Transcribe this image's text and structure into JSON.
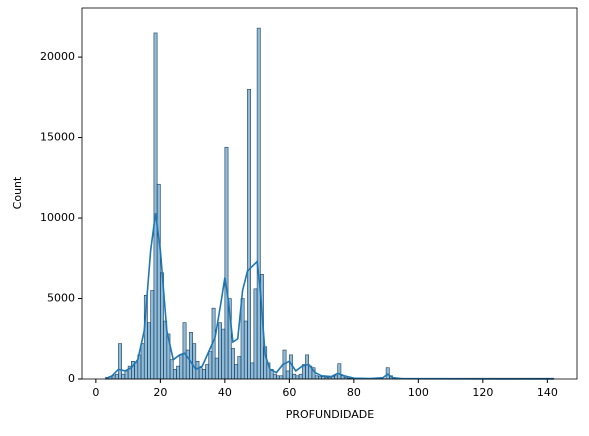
{
  "chart_data": {
    "type": "histogram",
    "xlabel": "PROFUNDIDADE",
    "ylabel": "Count",
    "bins": [
      3,
      4,
      5,
      6,
      7,
      8,
      9,
      10,
      11,
      12,
      13,
      14,
      15,
      16,
      17,
      18,
      19,
      20,
      21,
      22,
      23,
      24,
      25,
      26,
      27,
      28,
      29,
      30,
      31,
      32,
      33,
      34,
      35,
      36,
      37,
      38,
      39,
      40,
      41,
      42,
      43,
      44,
      45,
      46,
      47,
      48,
      49,
      50,
      51,
      52,
      53,
      54,
      55,
      56,
      57,
      58,
      59,
      60,
      61,
      62,
      63,
      64,
      65,
      66,
      67,
      68,
      69,
      70,
      71,
      72,
      73,
      74,
      75,
      76,
      77,
      78,
      79,
      80,
      81,
      82,
      83,
      84,
      85,
      86,
      87,
      88,
      89,
      90,
      91,
      92,
      93,
      94,
      95,
      142
    ],
    "values": [
      100,
      150,
      200,
      300,
      2200,
      300,
      500,
      800,
      1100,
      1000,
      1500,
      2200,
      5200,
      3500,
      5500,
      21500,
      12100,
      6600,
      3600,
      2800,
      1200,
      600,
      800,
      1500,
      3500,
      1800,
      2900,
      2200,
      1100,
      700,
      600,
      900,
      1700,
      4400,
      1300,
      3500,
      3100,
      14400,
      5000,
      1900,
      900,
      1400,
      5000,
      3600,
      18000,
      1000,
      5600,
      21800,
      6500,
      2000,
      1000,
      600,
      300,
      200,
      200,
      1800,
      500,
      1500,
      300,
      200,
      300,
      900,
      1500,
      800,
      700,
      200,
      150,
      150,
      100,
      100,
      150,
      200,
      950,
      200,
      100,
      50,
      30,
      20,
      20,
      20,
      20,
      20,
      20,
      20,
      20,
      20,
      20,
      700,
      200,
      20,
      10,
      10,
      50
    ],
    "color": "#1f77b4",
    "kde": {
      "x": [
        3,
        5,
        7,
        9,
        11,
        13,
        15,
        17,
        18.5,
        20,
        22,
        24,
        26,
        27.5,
        29,
        31,
        33,
        35,
        37,
        39,
        40,
        41,
        42.5,
        44,
        45.5,
        47,
        48.5,
        50,
        51,
        52.5,
        54,
        56,
        58,
        60,
        62,
        64,
        66,
        68,
        70,
        73,
        75,
        77,
        80,
        85,
        89,
        90.5,
        92,
        95,
        110,
        130,
        142
      ],
      "values": [
        0,
        200,
        600,
        500,
        700,
        1200,
        3000,
        8000,
        10300,
        8000,
        3000,
        1200,
        1500,
        1600,
        1200,
        600,
        800,
        1700,
        2600,
        5000,
        6300,
        5000,
        2300,
        2500,
        5500,
        6700,
        7000,
        7300,
        5500,
        1500,
        600,
        400,
        900,
        1100,
        500,
        800,
        900,
        400,
        200,
        150,
        350,
        200,
        50,
        30,
        80,
        300,
        80,
        20,
        10,
        5,
        0
      ]
    },
    "xlim": [
      -4.3,
      149.2
    ],
    "xticks": [
      0,
      20,
      40,
      60,
      80,
      100,
      120,
      140
    ],
    "ylim": [
      0,
      23050
    ],
    "yticks": [
      0,
      5000,
      10000,
      15000,
      20000
    ]
  }
}
